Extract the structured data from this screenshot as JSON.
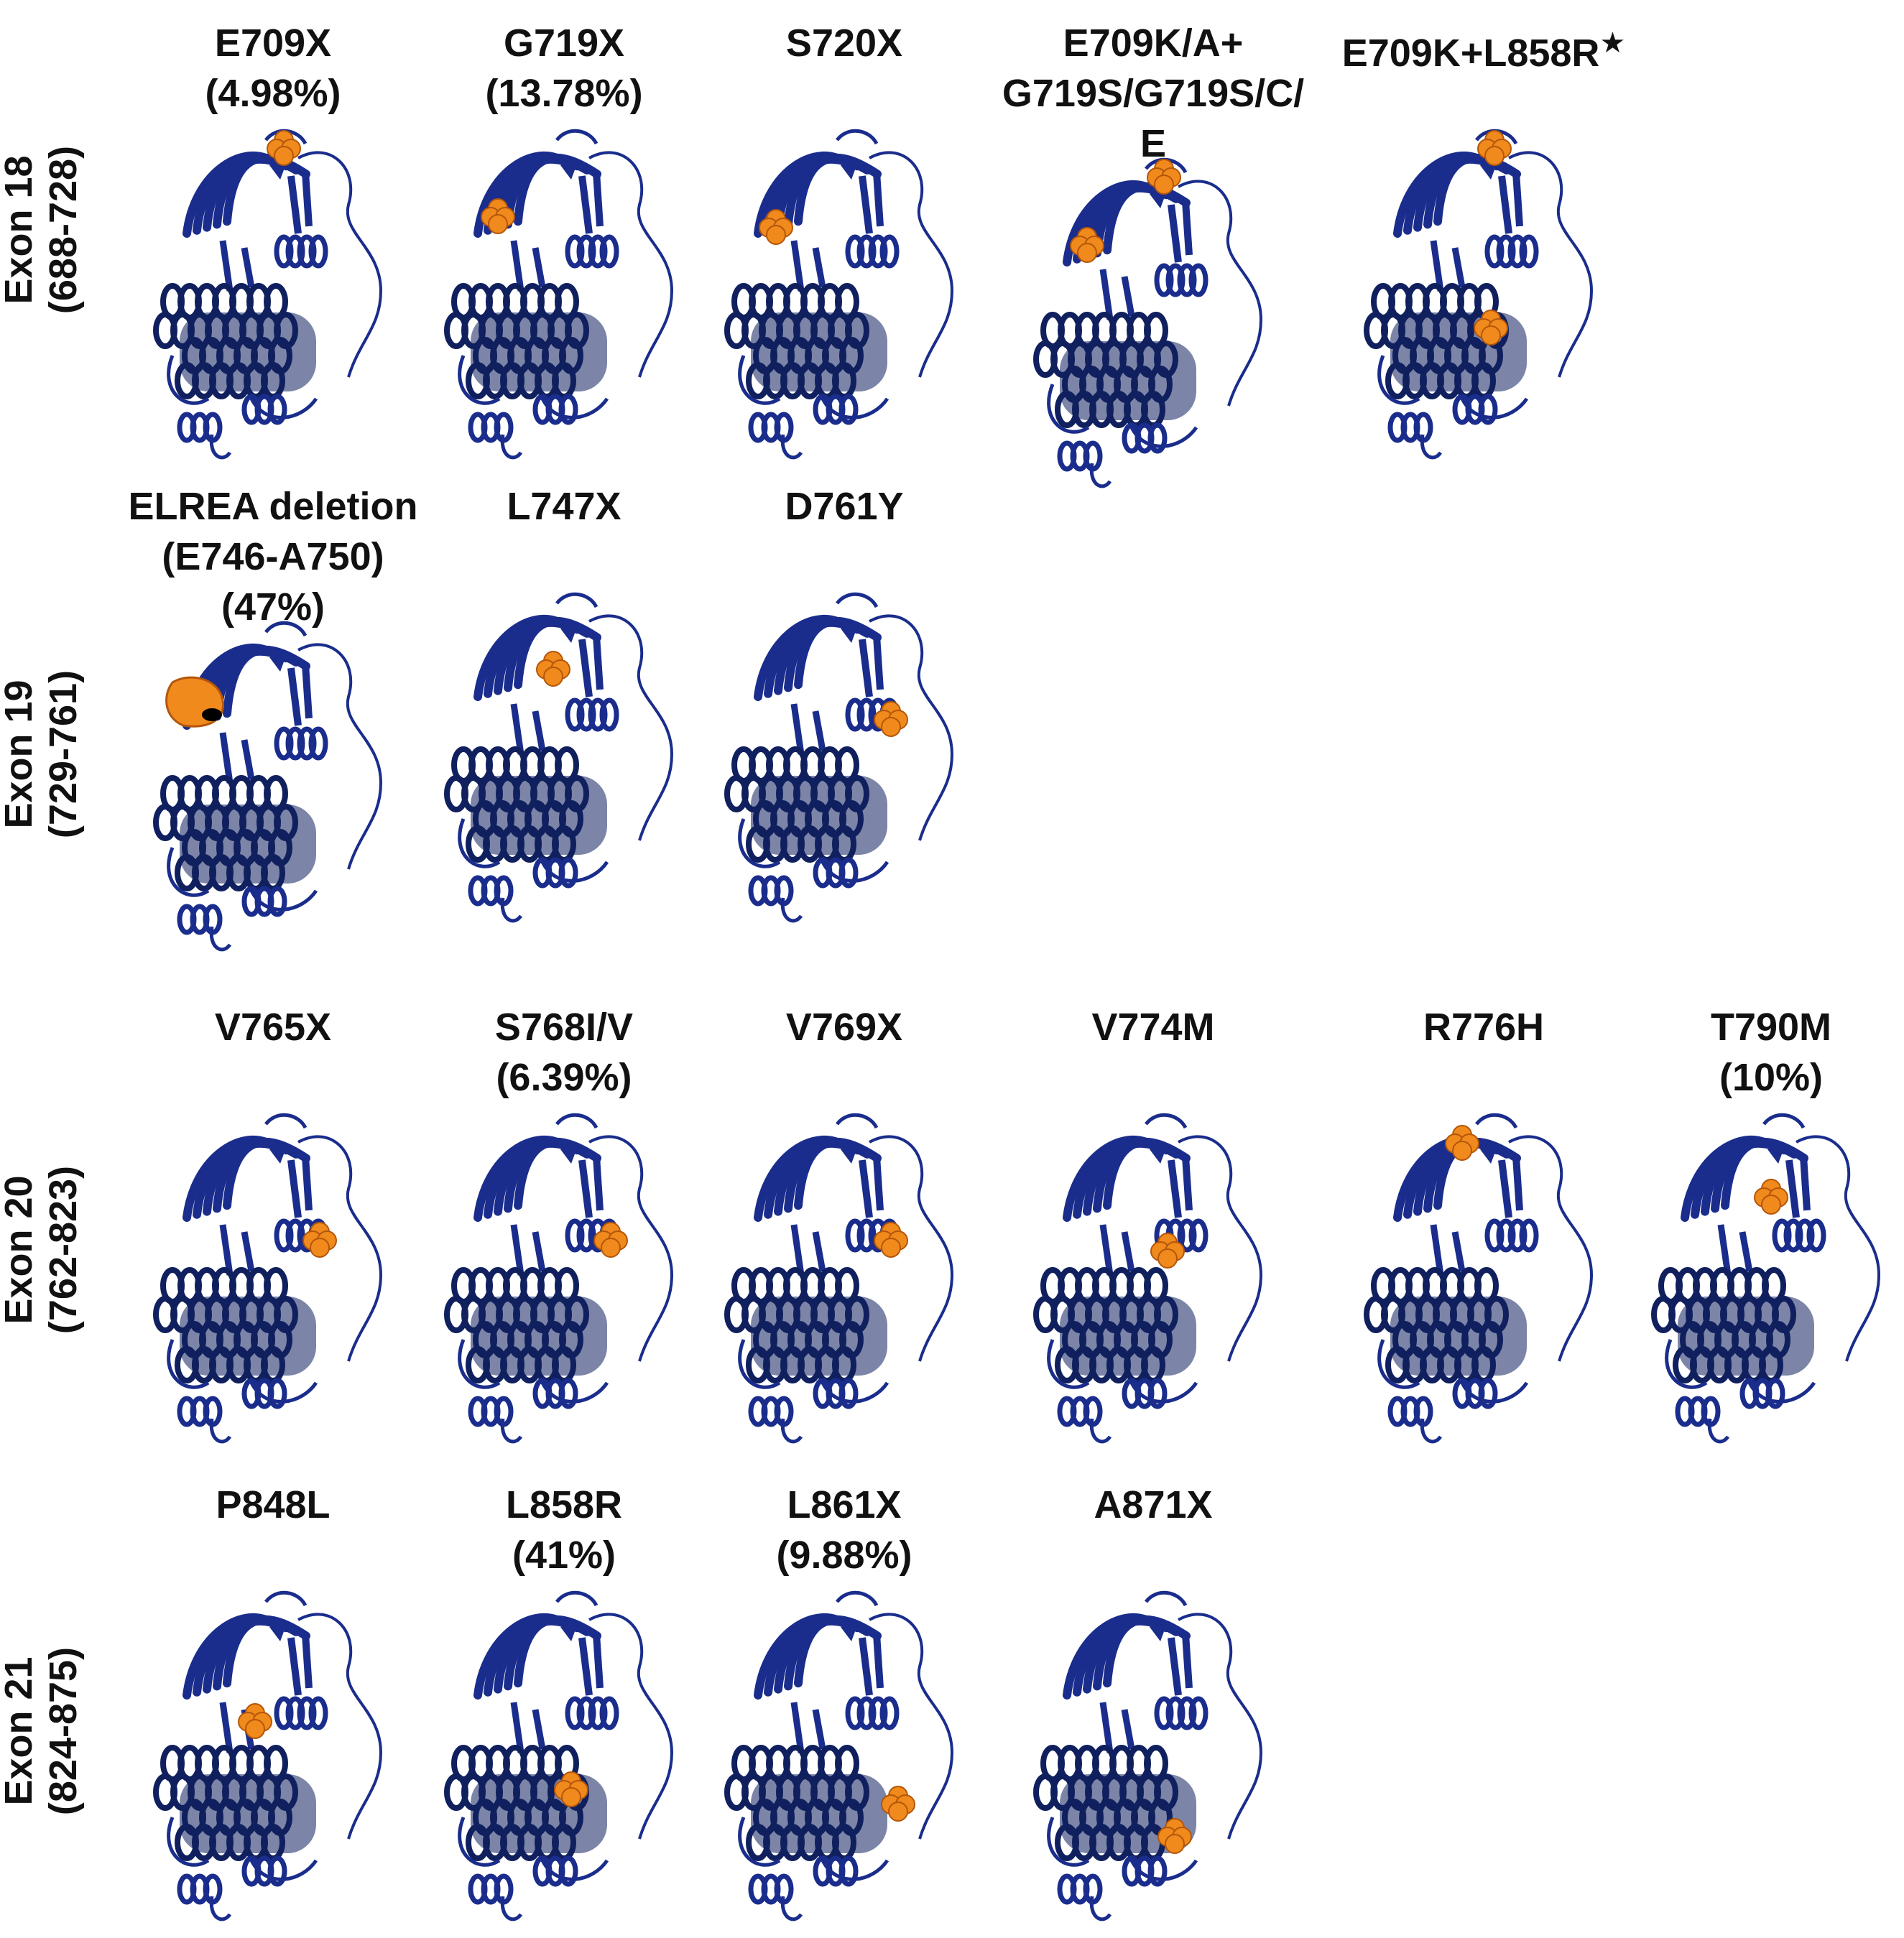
{
  "colors": {
    "protein": "#1a2d8c",
    "protein_dark": "#10205e",
    "mutation": "#f08a1c",
    "mutation_dark": "#b4560a"
  },
  "rows": [
    {
      "label": "Exon 18",
      "range": "(688-728)",
      "panels": [
        {
          "name": "E709X",
          "freq": "(4.98%)",
          "sites": [
            "top"
          ]
        },
        {
          "name": "G719X",
          "freq": "(13.78%)",
          "sites": [
            "left-strand"
          ]
        },
        {
          "name": "S720X",
          "freq": "",
          "sites": [
            "left-strand-low"
          ]
        },
        {
          "name": "E709K/A+",
          "freq": "G719S/G719S/C/",
          "extra": "E",
          "sites": [
            "top",
            "left-strand"
          ]
        },
        {
          "name": "E709K+L858R",
          "star": "★",
          "freq": "",
          "sites": [
            "top",
            "center-low"
          ]
        }
      ]
    },
    {
      "label": "Exon 19",
      "range": "(729-761)",
      "panels": [
        {
          "name": "ELREA deletion",
          "freq": "(E746-A750)",
          "extra": "(47%)",
          "sites": [
            "deletion"
          ]
        },
        {
          "name": "L747X",
          "freq": "",
          "sites": [
            "upper-mid"
          ]
        },
        {
          "name": "D761Y",
          "freq": "",
          "sites": [
            "helix-right"
          ]
        }
      ]
    },
    {
      "label": "Exon 20",
      "range": "(762-823)",
      "panels": [
        {
          "name": "V765X",
          "freq": "",
          "sites": [
            "helix-right"
          ]
        },
        {
          "name": "S768I/V",
          "freq": "(6.39%)",
          "sites": [
            "helix-right"
          ]
        },
        {
          "name": "V769X",
          "freq": "",
          "sites": [
            "helix-right"
          ]
        },
        {
          "name": "V774M",
          "freq": "",
          "sites": [
            "helix-below"
          ]
        },
        {
          "name": "R776H",
          "freq": "",
          "sites": [
            "top-left"
          ]
        },
        {
          "name": "T790M",
          "freq": "(10%)",
          "sites": [
            "upper-center"
          ]
        }
      ]
    },
    {
      "label": "Exon 21",
      "range": "(824-875)",
      "panels": [
        {
          "name": "P848L",
          "freq": "",
          "sites": [
            "center"
          ]
        },
        {
          "name": "L858R",
          "freq": "(41%)",
          "sites": [
            "center-low"
          ]
        },
        {
          "name": "L861X",
          "freq": "(9.88%)",
          "sites": [
            "right-low"
          ]
        },
        {
          "name": "A871X",
          "freq": "",
          "sites": [
            "bottom"
          ]
        }
      ]
    }
  ]
}
